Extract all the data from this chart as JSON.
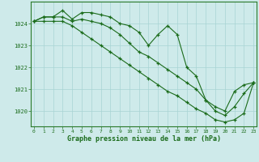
{
  "hours": [
    0,
    1,
    2,
    3,
    4,
    5,
    6,
    7,
    8,
    9,
    10,
    11,
    12,
    13,
    14,
    15,
    16,
    17,
    18,
    19,
    20,
    21,
    22,
    23
  ],
  "line_top": [
    1024.1,
    1024.3,
    1024.3,
    1024.6,
    1024.2,
    1024.5,
    1024.5,
    1024.4,
    1024.3,
    1024.0,
    1023.9,
    1023.6,
    1023.0,
    1023.5,
    1023.9,
    1023.5,
    1022.0,
    1021.6,
    1020.5,
    1020.2,
    1020.0,
    1020.9,
    1021.2,
    1021.3
  ],
  "line_mid": [
    1024.1,
    1024.3,
    1024.3,
    1024.3,
    1024.1,
    1024.2,
    1024.1,
    1024.0,
    1023.8,
    1023.5,
    1023.1,
    1022.7,
    1022.5,
    1022.2,
    1021.9,
    1021.6,
    1021.3,
    1021.0,
    1020.5,
    1020.0,
    1019.8,
    1020.2,
    1020.8,
    1021.3
  ],
  "line_bot": [
    1024.1,
    1024.1,
    1024.1,
    1024.1,
    1023.9,
    1023.6,
    1023.3,
    1023.0,
    1022.7,
    1022.4,
    1022.1,
    1021.8,
    1021.5,
    1021.2,
    1020.9,
    1020.7,
    1020.4,
    1020.1,
    1019.9,
    1019.6,
    1019.5,
    1019.6,
    1019.9,
    1021.3
  ],
  "ylim": [
    1019.3,
    1025.0
  ],
  "yticks": [
    1020,
    1021,
    1022,
    1023,
    1024
  ],
  "line_color": "#1a6b1a",
  "bg_color": "#ceeaea",
  "grid_color": "#a8d4d4",
  "xlabel": "Graphe pression niveau de la mer (hPa)",
  "xlabel_color": "#1a6b1a",
  "tick_color": "#1a6b1a",
  "spine_color": "#2a7a2a"
}
